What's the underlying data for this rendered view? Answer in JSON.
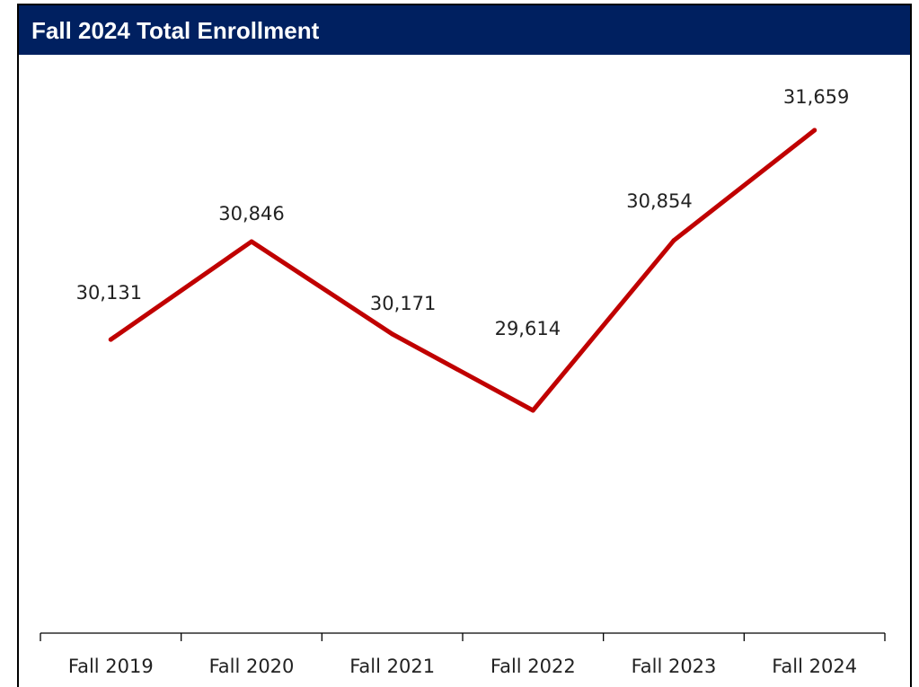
{
  "title": "Fall 2024 Total Enrollment",
  "colors": {
    "title_bar": "#002060",
    "title_text": "#ffffff",
    "line": "#C00000",
    "axis": "#000000",
    "label_text": "#222222"
  },
  "chart_data": {
    "type": "line",
    "title": "Fall 2024 Total Enrollment",
    "categories": [
      "Fall 2019",
      "Fall 2020",
      "Fall 2021",
      "Fall 2022",
      "Fall 2023",
      "Fall 2024"
    ],
    "series": [
      {
        "values": [
          30131,
          30846,
          30171,
          29614,
          30854,
          31659
        ],
        "data_labels": [
          "30,131",
          "30,846",
          "30,171",
          "29,614",
          "30,854",
          "31,659"
        ]
      }
    ],
    "xlabel": "",
    "ylabel": "",
    "grid": false,
    "legend": "none"
  }
}
